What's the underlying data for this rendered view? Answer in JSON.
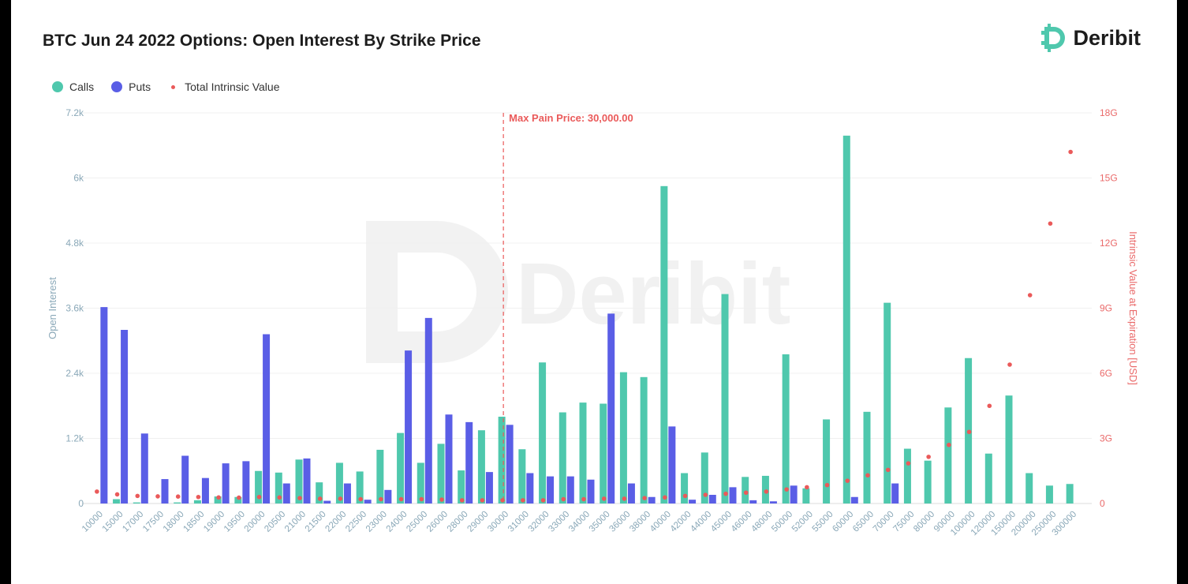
{
  "title": "BTC Jun 24 2022 Options: Open Interest By Strike Price",
  "brand": {
    "name": "Deribit",
    "logo_icon": "deribit-logo-icon"
  },
  "colors": {
    "calls": "#4fc8ad",
    "puts": "#5a5ee6",
    "intrinsic": "#ea5a5a",
    "axis_left": "#8aa8b8",
    "axis_right": "#ea6a6a"
  },
  "legend": [
    {
      "key": "calls",
      "label": "Calls"
    },
    {
      "key": "puts",
      "label": "Puts"
    },
    {
      "key": "intrinsic",
      "label": "Total Intrinsic Value"
    }
  ],
  "chart_data": {
    "type": "bar",
    "title": "BTC Jun 24 2022 Options: Open Interest By Strike Price",
    "categories": [
      "10000",
      "15000",
      "17000",
      "17500",
      "18000",
      "18500",
      "19000",
      "19500",
      "20000",
      "20500",
      "21000",
      "21500",
      "22000",
      "22500",
      "23000",
      "24000",
      "25000",
      "26000",
      "28000",
      "29000",
      "30000",
      "31000",
      "32000",
      "33000",
      "34000",
      "35000",
      "36000",
      "38000",
      "40000",
      "42000",
      "44000",
      "45000",
      "46000",
      "48000",
      "50000",
      "52000",
      "55000",
      "60000",
      "65000",
      "70000",
      "75000",
      "80000",
      "90000",
      "100000",
      "120000",
      "150000",
      "200000",
      "250000",
      "300000"
    ],
    "series": [
      {
        "name": "Calls",
        "kind": "bar",
        "axis": "left",
        "values": [
          0,
          80,
          20,
          0,
          20,
          60,
          130,
          120,
          600,
          570,
          810,
          390,
          750,
          590,
          990,
          1300,
          750,
          1100,
          610,
          1350,
          1600,
          1000,
          2600,
          1680,
          1860,
          1840,
          2420,
          2330,
          5850,
          560,
          940,
          3860,
          490,
          510,
          2750,
          280,
          1550,
          6780,
          1690,
          3700,
          1010,
          790,
          1770,
          2680,
          920,
          1990,
          560,
          330,
          360
        ]
      },
      {
        "name": "Puts",
        "kind": "bar",
        "axis": "left",
        "values": [
          3620,
          3200,
          1290,
          450,
          880,
          470,
          740,
          780,
          3120,
          370,
          830,
          50,
          370,
          70,
          250,
          2820,
          3420,
          1640,
          1500,
          580,
          1450,
          560,
          500,
          500,
          440,
          3500,
          370,
          120,
          1420,
          70,
          160,
          300,
          60,
          40,
          330,
          0,
          0,
          120,
          0,
          370,
          0,
          0,
          0,
          0,
          0,
          0,
          0,
          0,
          0
        ]
      },
      {
        "name": "Total Intrinsic Value",
        "kind": "scatter",
        "axis": "right",
        "values": [
          0.55,
          0.42,
          0.35,
          0.33,
          0.32,
          0.3,
          0.28,
          0.27,
          0.3,
          0.28,
          0.25,
          0.22,
          0.22,
          0.2,
          0.2,
          0.2,
          0.2,
          0.18,
          0.15,
          0.15,
          0.15,
          0.15,
          0.15,
          0.2,
          0.2,
          0.22,
          0.22,
          0.25,
          0.28,
          0.35,
          0.4,
          0.45,
          0.5,
          0.55,
          0.65,
          0.75,
          0.85,
          1.05,
          1.3,
          1.55,
          1.85,
          2.15,
          2.7,
          3.3,
          4.5,
          6.4,
          9.6,
          12.9,
          16.2
        ]
      }
    ],
    "y_left": {
      "label": "Open Interest",
      "range": [
        0,
        7200
      ],
      "ticks": [
        "0",
        "1.2k",
        "2.4k",
        "3.6k",
        "4.8k",
        "6k",
        "7.2k"
      ]
    },
    "y_right": {
      "label": "Intrinsic Value at Expiration [USD]",
      "range": [
        0,
        18
      ],
      "ticks": [
        "0",
        "3G",
        "6G",
        "9G",
        "12G",
        "15G",
        "18G"
      ]
    },
    "annotation": {
      "label": "Max Pain Price: 30,000.00",
      "category": "30000"
    },
    "grid": true,
    "legend_position": "top-left"
  }
}
